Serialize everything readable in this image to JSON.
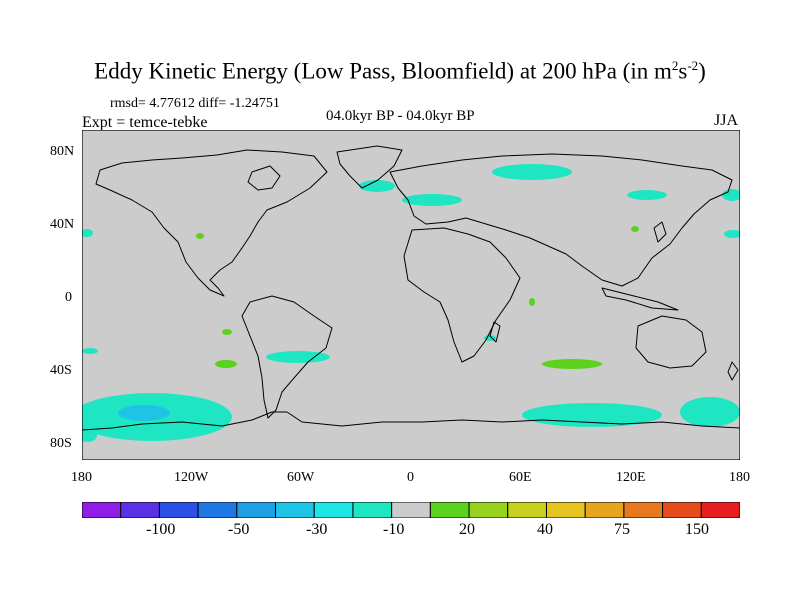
{
  "header": {
    "title_main": "Eddy Kinetic Energy (Low Pass, Bloomfield) at 200 hPa (in m",
    "title_sup1": "2",
    "title_mid": "s",
    "title_sup2": "-2",
    "title_end": ")",
    "stats": "rmsd= 4.77612 diff= -1.24751",
    "experiment": "Expt = temce-tebke",
    "period": "04.0kyr BP - 04.0kyr BP",
    "season": "JJA"
  },
  "map": {
    "projection": "cylindrical-equidistant",
    "background_color": "#cccccc",
    "lat_labels": [
      "80N",
      "40N",
      "0",
      "40S",
      "80S"
    ],
    "lon_labels": [
      "180",
      "120W",
      "60W",
      "0",
      "60E",
      "120E",
      "180"
    ]
  },
  "colorbar": {
    "colors": [
      "#8f1ee6",
      "#5a32e6",
      "#2c4fe6",
      "#1f78e6",
      "#1ea0e6",
      "#1ec3e6",
      "#1ee6e6",
      "#1ee6c3",
      "#cccccc",
      "#5ad21e",
      "#96d21e",
      "#c8d21e",
      "#e6c31e",
      "#e6a51e",
      "#e6781e",
      "#e64b1e",
      "#e61e1e"
    ],
    "labels": [
      "-100",
      "-50",
      "-30",
      "-10",
      "20",
      "40",
      "75",
      "150"
    ]
  }
}
